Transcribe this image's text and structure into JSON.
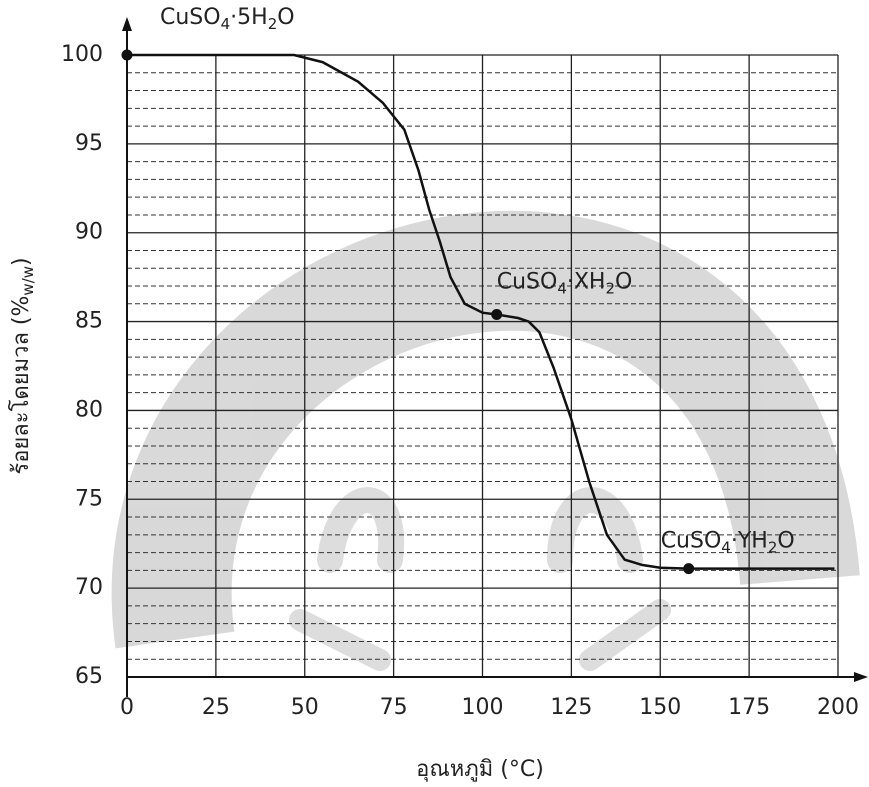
{
  "chart_data": {
    "type": "line",
    "ylabel": [
      "ร้อยละโดยมวล (%",
      "w/w",
      ")"
    ],
    "xlabel": "อุณหภูมิ (°C)",
    "xlim": [
      0,
      200
    ],
    "ylim": [
      65,
      100
    ],
    "xticks": [
      0,
      25,
      50,
      75,
      100,
      125,
      150,
      175,
      200
    ],
    "yticks": [
      65,
      70,
      75,
      80,
      85,
      90,
      95,
      100
    ],
    "yminorticks": [
      66,
      67,
      68,
      69,
      71,
      72,
      73,
      74,
      76,
      77,
      78,
      79,
      81,
      82,
      83,
      84,
      86,
      87,
      88,
      89,
      91,
      92,
      93,
      94,
      96,
      97,
      98,
      99
    ],
    "grid": true,
    "series": [
      {
        "color": "#111111",
        "x": [
          0,
          47,
          55,
          65,
          72,
          78,
          82,
          85,
          88,
          91,
          95,
          100,
          104,
          110,
          113,
          116,
          120,
          125,
          130,
          135,
          140,
          145,
          150,
          158,
          170,
          199
        ],
        "values": [
          100,
          100,
          99.6,
          98.5,
          97.3,
          95.8,
          93.5,
          91.3,
          89.5,
          87.5,
          86,
          85.5,
          85.4,
          85.2,
          85.0,
          84.4,
          82.4,
          79.5,
          76,
          73,
          71.6,
          71.3,
          71.15,
          71.1,
          71.1,
          71.1
        ]
      }
    ],
    "markers": {
      "x": [
        0,
        104,
        158
      ],
      "values": [
        100,
        85.4,
        71.1
      ]
    },
    "annotations": [
      [
        "CuSO",
        "4",
        "·5H",
        "2",
        "O"
      ],
      [
        "CuSO",
        "4",
        "·XH",
        "2",
        "O"
      ],
      [
        "CuSO",
        "4",
        "·YH",
        "2",
        "O"
      ]
    ]
  }
}
